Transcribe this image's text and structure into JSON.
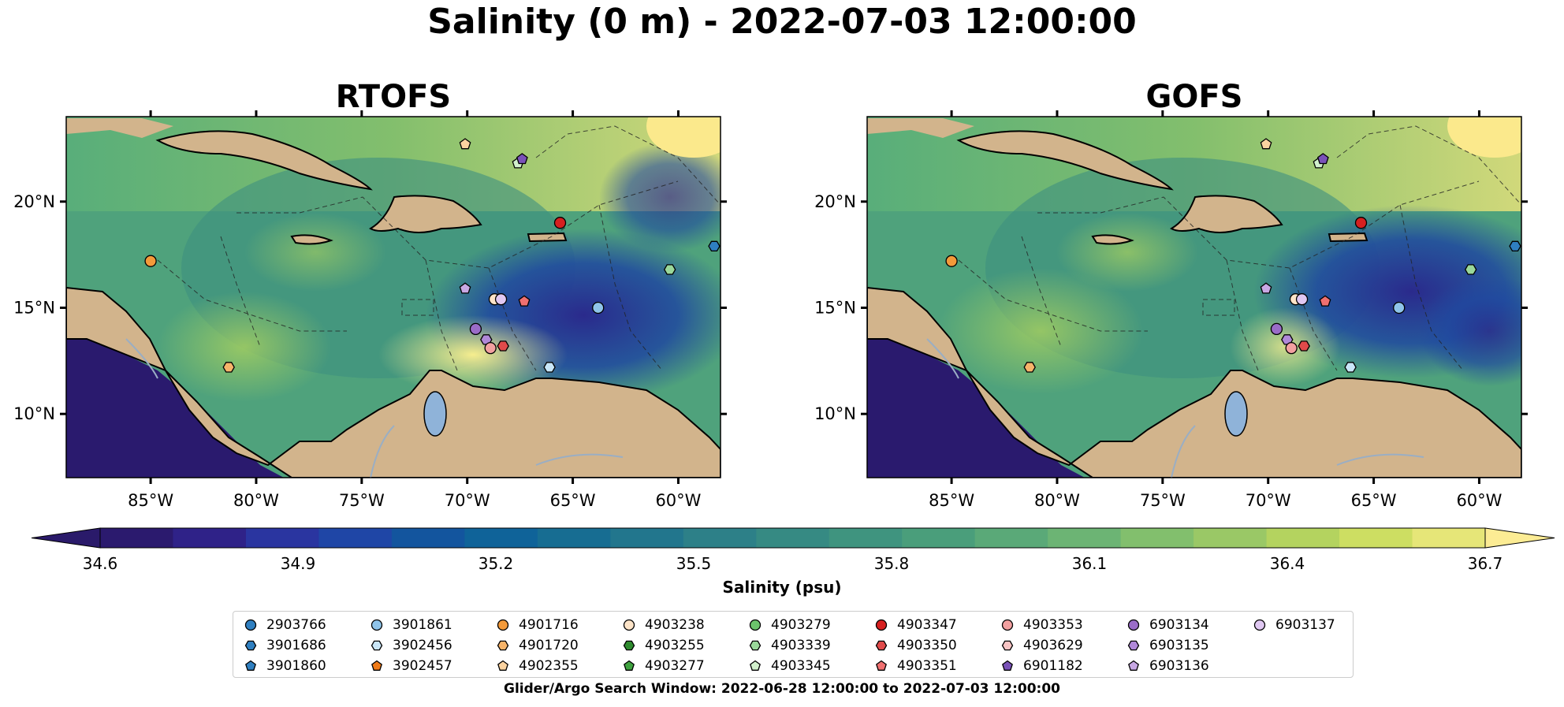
{
  "figure": {
    "title": "Salinity (0 m) - 2022-07-03 12:00:00",
    "panels": [
      {
        "id": "left",
        "title": "RTOFS"
      },
      {
        "id": "right",
        "title": "GOFS"
      }
    ],
    "lat_ticks": [
      "20°N",
      "15°N",
      "10°N"
    ],
    "lon_ticks": [
      "85°W",
      "80°W",
      "75°W",
      "70°W",
      "65°W",
      "60°W"
    ],
    "colorbar": {
      "label": "Salinity (psu)",
      "ticks": [
        "34.6",
        "34.9",
        "35.2",
        "35.5",
        "35.8",
        "36.1",
        "36.4",
        "36.7"
      ],
      "range": [
        34.6,
        36.7
      ],
      "colors": [
        "#2b1a6e",
        "#2f2288",
        "#2a35a0",
        "#1f46a6",
        "#13559e",
        "#0f6399",
        "#176d92",
        "#22768d",
        "#2d8088",
        "#368a83",
        "#3f947f",
        "#4a9e7b",
        "#5aa978",
        "#6cb474",
        "#82bf6d",
        "#9ac866",
        "#b4d35f",
        "#cdde62",
        "#e6e678"
      ],
      "extend_low": "#2a1a6a",
      "extend_high": "#fcec94"
    },
    "legend": [
      {
        "id": "2903766",
        "color": "#2f7fc0",
        "marker": "circle"
      },
      {
        "id": "3901686",
        "color": "#2f7fc0",
        "marker": "hexagon"
      },
      {
        "id": "3901860",
        "color": "#2f7fc0",
        "marker": "pentagon"
      },
      {
        "id": "3901861",
        "color": "#8fc4ea",
        "marker": "circle"
      },
      {
        "id": "3902456",
        "color": "#c9e6f8",
        "marker": "hexagon"
      },
      {
        "id": "3902457",
        "color": "#f07a17",
        "marker": "pentagon"
      },
      {
        "id": "4901716",
        "color": "#f39a3a",
        "marker": "circle"
      },
      {
        "id": "4901720",
        "color": "#f7b46a",
        "marker": "hexagon"
      },
      {
        "id": "4902355",
        "color": "#fbd3a0",
        "marker": "pentagon"
      },
      {
        "id": "4903238",
        "color": "#fde4c8",
        "marker": "circle"
      },
      {
        "id": "4903255",
        "color": "#2e8b2e",
        "marker": "hexagon"
      },
      {
        "id": "4903277",
        "color": "#3fa23f",
        "marker": "pentagon"
      },
      {
        "id": "4903279",
        "color": "#6cc46c",
        "marker": "circle"
      },
      {
        "id": "4903339",
        "color": "#9ad89a",
        "marker": "hexagon"
      },
      {
        "id": "4903345",
        "color": "#d2f0cc",
        "marker": "pentagon"
      },
      {
        "id": "4903347",
        "color": "#d62020",
        "marker": "circle"
      },
      {
        "id": "4903350",
        "color": "#e04a4a",
        "marker": "hexagon"
      },
      {
        "id": "4903351",
        "color": "#f07070",
        "marker": "pentagon"
      },
      {
        "id": "4903353",
        "color": "#f2a0a0",
        "marker": "circle"
      },
      {
        "id": "4903629",
        "color": "#f8c4c4",
        "marker": "hexagon"
      },
      {
        "id": "6901182",
        "color": "#7a52b8",
        "marker": "pentagon"
      },
      {
        "id": "6903134",
        "color": "#9a6cc8",
        "marker": "circle"
      },
      {
        "id": "6903135",
        "color": "#b088d8",
        "marker": "hexagon"
      },
      {
        "id": "6903136",
        "color": "#c8a8e4",
        "marker": "pentagon"
      },
      {
        "id": "6903137",
        "color": "#e0c8f2",
        "marker": "circle"
      }
    ],
    "observations": [
      {
        "id": "4901716",
        "lon": -85.0,
        "lat": 17.2
      },
      {
        "id": "4901720",
        "lon": -81.3,
        "lat": 12.2
      },
      {
        "id": "4902355",
        "lon": -70.1,
        "lat": 22.7
      },
      {
        "id": "4903345",
        "lon": -67.6,
        "lat": 21.8
      },
      {
        "id": "6901182",
        "lon": -67.4,
        "lat": 22.0
      },
      {
        "id": "4903347",
        "lon": -65.6,
        "lat": 19.0
      },
      {
        "id": "3901686",
        "lon": -58.3,
        "lat": 17.9
      },
      {
        "id": "4903339",
        "lon": -60.4,
        "lat": 16.8
      },
      {
        "id": "6903136",
        "lon": -70.1,
        "lat": 15.9
      },
      {
        "id": "4903238",
        "lon": -68.7,
        "lat": 15.4
      },
      {
        "id": "6903137",
        "lon": -68.4,
        "lat": 15.4
      },
      {
        "id": "4903351",
        "lon": -67.3,
        "lat": 15.3
      },
      {
        "id": "3901861",
        "lon": -63.8,
        "lat": 15.0
      },
      {
        "id": "6903134",
        "lon": -69.6,
        "lat": 14.0
      },
      {
        "id": "6903135",
        "lon": -69.1,
        "lat": 13.5
      },
      {
        "id": "4903353",
        "lon": -68.9,
        "lat": 13.1
      },
      {
        "id": "4903350",
        "lon": -68.3,
        "lat": 13.2
      },
      {
        "id": "3902456",
        "lon": -66.1,
        "lat": 12.2
      }
    ],
    "footnote": "Glider/Argo Search Window: 2022-06-28 12:00:00 to 2022-07-03 12:00:00"
  }
}
